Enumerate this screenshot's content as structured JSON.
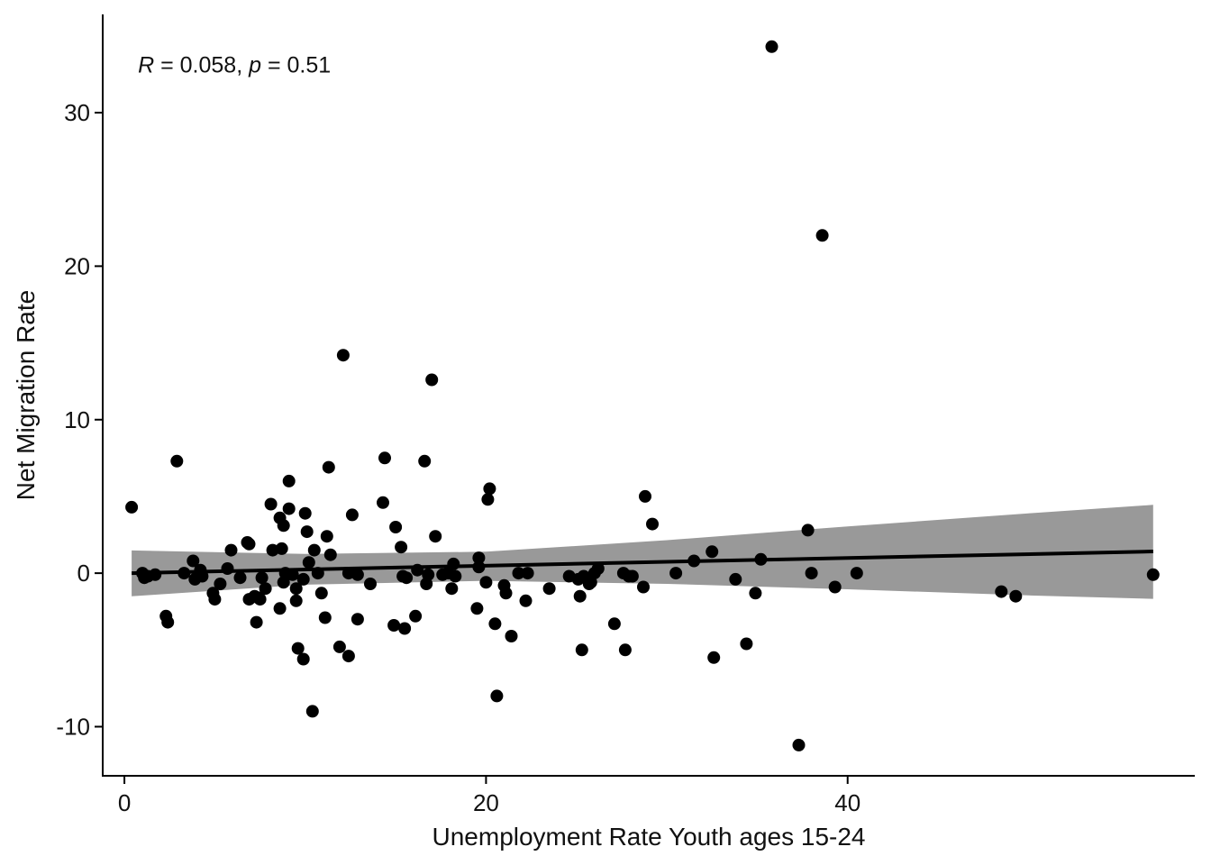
{
  "chart_data": {
    "type": "scatter",
    "xlabel": "Unemployment Rate Youth ages 15-24",
    "ylabel": "Net Migration Rate",
    "xlim": [
      -1.2,
      59.2
    ],
    "ylim": [
      -13.2,
      36.4
    ],
    "x_ticks": [
      0,
      20,
      40
    ],
    "y_ticks": [
      -10,
      0,
      10,
      20,
      30
    ],
    "x_tick_labels": [
      "0",
      "20",
      "40"
    ],
    "y_tick_labels": [
      "-10",
      "0",
      "10",
      "20",
      "30"
    ],
    "grid": false,
    "annotation": {
      "r_label": "R",
      "r_text": " = 0.058, ",
      "p_label": "p",
      "p_text": " = 0.51",
      "x": 0.4,
      "y": 33.2
    },
    "regression": {
      "x_range": [
        0.4,
        56.9
      ],
      "intercept": -0.01,
      "slope": 0.025,
      "band_upper": [
        [
          0.4,
          1.48
        ],
        [
          10,
          1.25
        ],
        [
          20,
          1.4
        ],
        [
          30,
          2.15
        ],
        [
          40,
          3.05
        ],
        [
          50,
          3.9
        ],
        [
          56.9,
          4.45
        ]
      ],
      "band_lower": [
        [
          0.4,
          -1.5
        ],
        [
          10,
          -0.75
        ],
        [
          20,
          -0.5
        ],
        [
          30,
          -0.7
        ],
        [
          40,
          -1.05
        ],
        [
          50,
          -1.45
        ],
        [
          56.9,
          -1.67
        ]
      ],
      "line_color": "#000000",
      "band_color": "#999999"
    },
    "point_color": "#000000",
    "points": [
      [
        0.4,
        4.3
      ],
      [
        1.0,
        0.0
      ],
      [
        1.1,
        -0.3
      ],
      [
        1.3,
        -0.2
      ],
      [
        1.7,
        -0.1
      ],
      [
        2.3,
        -2.8
      ],
      [
        2.4,
        -3.2
      ],
      [
        2.9,
        7.3
      ],
      [
        3.3,
        0.0
      ],
      [
        3.8,
        0.8
      ],
      [
        3.9,
        -0.4
      ],
      [
        4.2,
        0.2
      ],
      [
        4.3,
        -0.2
      ],
      [
        4.9,
        -1.3
      ],
      [
        5.0,
        -1.7
      ],
      [
        5.3,
        -0.7
      ],
      [
        5.7,
        0.3
      ],
      [
        5.9,
        1.5
      ],
      [
        6.4,
        -0.3
      ],
      [
        6.8,
        2.0
      ],
      [
        6.9,
        1.9
      ],
      [
        6.9,
        -1.7
      ],
      [
        7.2,
        -1.5
      ],
      [
        7.3,
        -3.2
      ],
      [
        7.4,
        -1.6
      ],
      [
        7.5,
        -1.7
      ],
      [
        7.6,
        -0.3
      ],
      [
        7.8,
        -1.0
      ],
      [
        8.1,
        4.5
      ],
      [
        8.2,
        1.5
      ],
      [
        8.6,
        3.6
      ],
      [
        8.6,
        -2.3
      ],
      [
        8.7,
        1.6
      ],
      [
        8.8,
        -0.6
      ],
      [
        8.8,
        3.1
      ],
      [
        8.9,
        0.0
      ],
      [
        9.1,
        6.0
      ],
      [
        9.1,
        4.2
      ],
      [
        9.3,
        -0.1
      ],
      [
        9.5,
        -1.0
      ],
      [
        9.5,
        -1.8
      ],
      [
        9.6,
        -4.9
      ],
      [
        9.9,
        -0.4
      ],
      [
        9.9,
        -5.6
      ],
      [
        10.0,
        3.9
      ],
      [
        10.1,
        2.7
      ],
      [
        10.2,
        0.7
      ],
      [
        10.4,
        -9.0
      ],
      [
        10.5,
        1.5
      ],
      [
        10.7,
        0.0
      ],
      [
        10.9,
        -1.3
      ],
      [
        11.1,
        -2.9
      ],
      [
        11.2,
        2.4
      ],
      [
        11.3,
        6.9
      ],
      [
        11.4,
        1.2
      ],
      [
        11.9,
        -4.8
      ],
      [
        12.1,
        14.2
      ],
      [
        12.4,
        -5.4
      ],
      [
        12.4,
        0.0
      ],
      [
        12.6,
        3.8
      ],
      [
        12.9,
        -3.0
      ],
      [
        12.9,
        -0.1
      ],
      [
        13.6,
        -0.7
      ],
      [
        14.3,
        4.6
      ],
      [
        14.4,
        7.5
      ],
      [
        14.9,
        -3.4
      ],
      [
        15.0,
        3.0
      ],
      [
        15.3,
        1.7
      ],
      [
        15.4,
        -0.2
      ],
      [
        15.5,
        -3.6
      ],
      [
        15.6,
        -0.3
      ],
      [
        16.1,
        -2.8
      ],
      [
        16.2,
        0.2
      ],
      [
        16.6,
        7.3
      ],
      [
        16.7,
        -0.7
      ],
      [
        16.8,
        -0.1
      ],
      [
        17.0,
        12.6
      ],
      [
        17.2,
        2.4
      ],
      [
        17.6,
        -0.1
      ],
      [
        17.9,
        0.0
      ],
      [
        18.1,
        -1.0
      ],
      [
        18.2,
        0.6
      ],
      [
        18.3,
        -0.2
      ],
      [
        19.5,
        -2.3
      ],
      [
        19.6,
        1.0
      ],
      [
        19.6,
        0.4
      ],
      [
        20.0,
        -0.6
      ],
      [
        20.1,
        4.8
      ],
      [
        20.2,
        5.5
      ],
      [
        20.5,
        -3.3
      ],
      [
        20.6,
        -8.0
      ],
      [
        21.0,
        -0.8
      ],
      [
        21.1,
        -1.3
      ],
      [
        21.4,
        -4.1
      ],
      [
        21.8,
        0.0
      ],
      [
        22.2,
        -1.8
      ],
      [
        22.3,
        0.0
      ],
      [
        23.5,
        -1.0
      ],
      [
        24.6,
        -0.2
      ],
      [
        25.1,
        -0.4
      ],
      [
        25.2,
        -1.5
      ],
      [
        25.3,
        -5.0
      ],
      [
        25.4,
        -0.2
      ],
      [
        25.7,
        -0.7
      ],
      [
        25.8,
        -0.6
      ],
      [
        26.0,
        0.0
      ],
      [
        26.2,
        0.3
      ],
      [
        27.1,
        -3.3
      ],
      [
        27.6,
        0.0
      ],
      [
        27.7,
        -5.0
      ],
      [
        27.9,
        -0.2
      ],
      [
        28.1,
        -0.2
      ],
      [
        28.7,
        -0.9
      ],
      [
        28.8,
        5.0
      ],
      [
        29.2,
        3.2
      ],
      [
        30.5,
        0.0
      ],
      [
        31.5,
        0.8
      ],
      [
        32.5,
        1.4
      ],
      [
        32.6,
        -5.5
      ],
      [
        33.8,
        -0.4
      ],
      [
        34.4,
        -4.6
      ],
      [
        34.9,
        -1.3
      ],
      [
        35.2,
        0.9
      ],
      [
        35.8,
        34.3
      ],
      [
        37.3,
        -11.2
      ],
      [
        37.8,
        2.8
      ],
      [
        38.0,
        0.0
      ],
      [
        38.6,
        22.0
      ],
      [
        39.3,
        -0.9
      ],
      [
        40.5,
        0.0
      ],
      [
        48.5,
        -1.2
      ],
      [
        49.3,
        -1.5
      ],
      [
        56.9,
        -0.1
      ]
    ]
  }
}
